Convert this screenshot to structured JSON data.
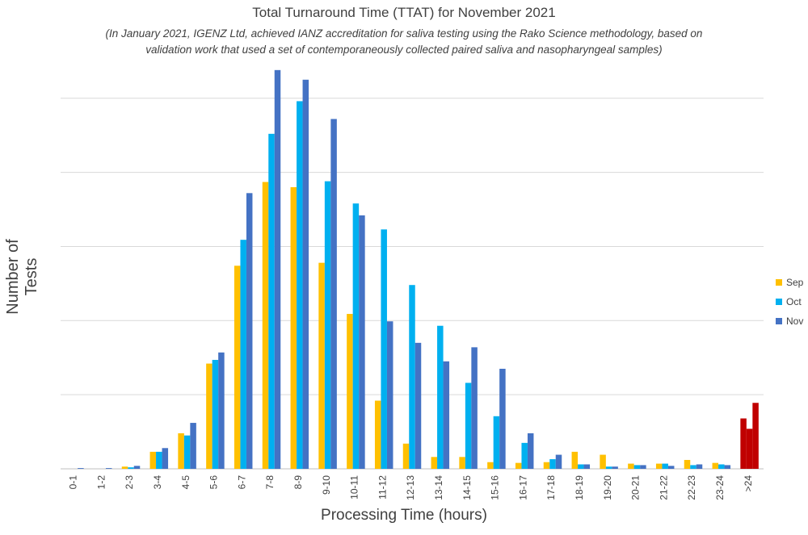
{
  "chart_data": {
    "type": "bar",
    "title": "Total Turnaround Time (TTAT) for November 2021",
    "subtitle_lines": [
      "(In January 2021, IGENZ Ltd, achieved IANZ accreditation for saliva testing using the Rako Science methodology, based on",
      "validation work that used a set of contemporaneously collected paired saliva and nasopharyngeal samples)"
    ],
    "xlabel": "Processing Time (hours)",
    "ylabel": "Number of Tests",
    "ylim": [
      0,
      540
    ],
    "gridlines": [
      0,
      100,
      200,
      300,
      400,
      500
    ],
    "y_tick_labels_shown": false,
    "grid": true,
    "legend_position": "right",
    "categories": [
      "0-1",
      "1-2",
      "2-3",
      "3-4",
      "4-5",
      "5-6",
      "6-7",
      "7-8",
      "8-9",
      "9-10",
      "10-11",
      "11-12",
      "12-13",
      "13-14",
      "14-15",
      "15-16",
      "16-17",
      "17-18",
      "18-19",
      "19-20",
      "20-21",
      "21-22",
      "22-23",
      "23-24",
      ">24"
    ],
    "series": [
      {
        "name": "Sep",
        "color": "#FFC000",
        "values": [
          0,
          0,
          3,
          23,
          48,
          142,
          274,
          387,
          380,
          278,
          209,
          92,
          34,
          16,
          16,
          9,
          8,
          9,
          23,
          19,
          7,
          7,
          12,
          8,
          68
        ]
      },
      {
        "name": "Oct",
        "color": "#00B0F0",
        "values": [
          0,
          0,
          2,
          23,
          45,
          147,
          309,
          452,
          496,
          388,
          358,
          323,
          248,
          193,
          116,
          71,
          35,
          13,
          6,
          3,
          5,
          7,
          5,
          6,
          54
        ]
      },
      {
        "name": "Nov",
        "color": "#4472C4",
        "values": [
          1,
          1,
          4,
          28,
          62,
          157,
          372,
          538,
          525,
          472,
          342,
          199,
          170,
          145,
          164,
          135,
          48,
          19,
          6,
          3,
          5,
          4,
          6,
          5,
          89
        ]
      }
    ],
    "highlight_category": ">24",
    "highlight_color": "#C00000"
  }
}
